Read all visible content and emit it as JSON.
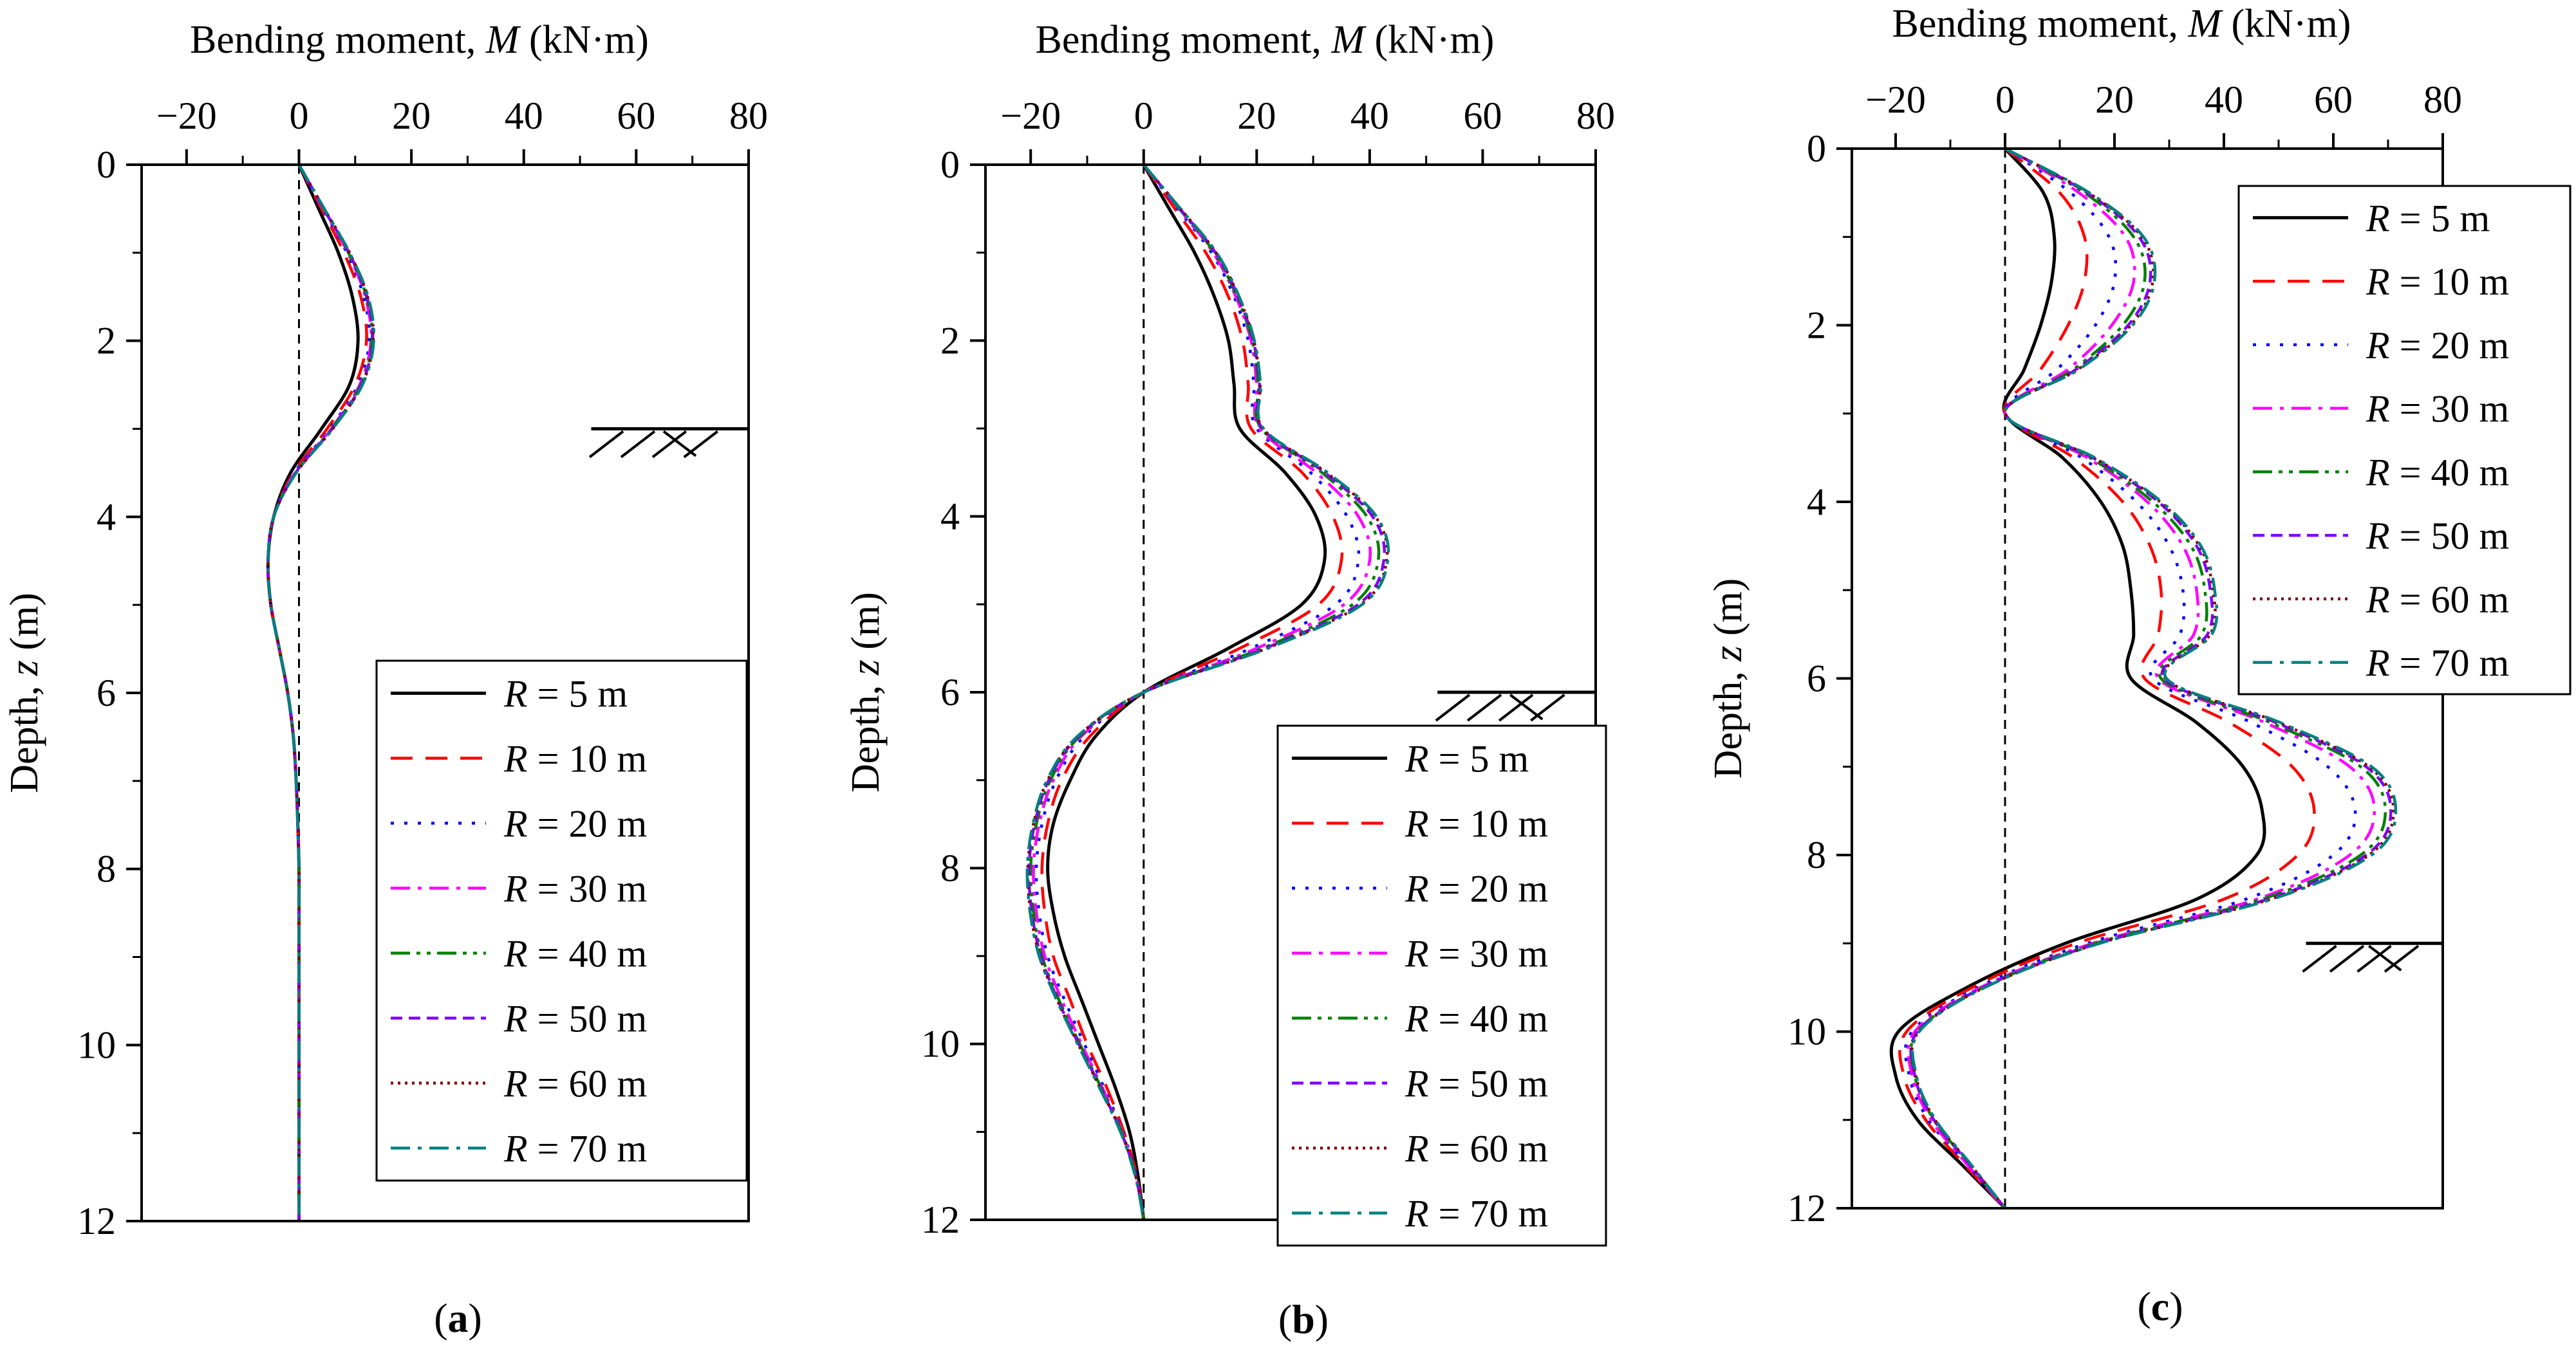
{
  "figure": {
    "series_styles": [
      {
        "name": "R = 5 m",
        "color": "#000000",
        "dash": ""
      },
      {
        "name": "R = 10 m",
        "color": "#ff0000",
        "dash": "34,20"
      },
      {
        "name": "R = 20 m",
        "color": "#0000ff",
        "dash": "5,16"
      },
      {
        "name": "R = 30 m",
        "color": "#ff00ff",
        "dash": "30,12,6,12"
      },
      {
        "name": "R = 40 m",
        "color": "#008000",
        "dash": "30,10,6,10,6,10"
      },
      {
        "name": "R = 50 m",
        "color": "#8000ff",
        "dash": "18,10"
      },
      {
        "name": "R = 60 m",
        "color": "#800000",
        "dash": "4,7"
      },
      {
        "name": "R = 70 m",
        "color": "#008080",
        "dash": "30,12,6,12"
      }
    ]
  },
  "chart_data": [
    {
      "type": "line",
      "panel": "a",
      "label": "(a)",
      "xlabel_prefix": "Bending moment, ",
      "xlabel_var": "M",
      "xlabel_unit": " (kN·m)",
      "ylabel_prefix": "Depth, ",
      "ylabel_var": "z",
      "ylabel_unit": "  (m)",
      "xlim": [
        -28,
        80
      ],
      "ylim": [
        12,
        0
      ],
      "xticks": [
        -20,
        0,
        20,
        40,
        60,
        80
      ],
      "yticks": [
        0,
        2,
        4,
        6,
        8,
        10,
        12
      ],
      "xtick_labels": [
        "−20",
        "0",
        "20",
        "40",
        "60",
        "80"
      ],
      "ytick_labels": [
        "0",
        "2",
        "4",
        "6",
        "8",
        "10",
        "12"
      ],
      "ground_level": {
        "depth": 3,
        "x_range": [
          52,
          80
        ]
      },
      "zero_line": true,
      "legend": {
        "position": "lower-right",
        "labels": [
          "R = 5 m",
          "R = 10 m",
          "R = 20 m",
          "R = 30 m",
          "R = 40 m",
          "R = 50 m",
          "R = 60 m",
          "R = 70 m"
        ]
      },
      "y": [
        0,
        0.5,
        1,
        1.5,
        2,
        2.5,
        3,
        3.5,
        4,
        4.5,
        5,
        5.5,
        6,
        6.5,
        7,
        7.5,
        8,
        8.5,
        9,
        9.5,
        10,
        10.5,
        11,
        11.5,
        12
      ],
      "series": [
        {
          "name": "R = 5 m",
          "x": [
            0,
            3.5,
            7,
            9.5,
            10.5,
            9,
            4,
            -1.5,
            -4.5,
            -5.5,
            -5,
            -3.5,
            -2,
            -1,
            -0.5,
            -0.2,
            0,
            0,
            0,
            0,
            0,
            0,
            0,
            0,
            0
          ]
        },
        {
          "name": "R = 10 m",
          "x": [
            0,
            4,
            8,
            11,
            12,
            10,
            5,
            -1,
            -4.5,
            -5.5,
            -5,
            -3.5,
            -2,
            -1,
            -0.5,
            -0.2,
            0,
            0,
            0,
            0,
            0,
            0,
            0,
            0,
            0
          ]
        },
        {
          "name": "R = 20 m",
          "x": [
            0,
            4.2,
            8.5,
            11.5,
            12.5,
            10.5,
            5.5,
            -0.8,
            -4.5,
            -5.5,
            -5,
            -3.5,
            -2,
            -1,
            -0.5,
            -0.2,
            0,
            0,
            0,
            0,
            0,
            0,
            0,
            0,
            0
          ]
        },
        {
          "name": "R = 30 m",
          "x": [
            0,
            4.3,
            8.7,
            11.8,
            12.8,
            10.8,
            5.7,
            -0.7,
            -4.5,
            -5.5,
            -5,
            -3.5,
            -2,
            -1,
            -0.5,
            -0.2,
            0,
            0,
            0,
            0,
            0,
            0,
            0,
            0,
            0
          ]
        },
        {
          "name": "R = 40 m",
          "x": [
            0,
            4.4,
            8.8,
            12,
            13,
            11,
            5.8,
            -0.6,
            -4.5,
            -5.5,
            -5,
            -3.5,
            -2,
            -1,
            -0.5,
            -0.2,
            0,
            0,
            0,
            0,
            0,
            0,
            0,
            0,
            0
          ]
        },
        {
          "name": "R = 50 m",
          "x": [
            0,
            4.4,
            8.9,
            12.1,
            13.1,
            11.1,
            5.9,
            -0.6,
            -4.5,
            -5.5,
            -5,
            -3.5,
            -2,
            -1,
            -0.5,
            -0.2,
            0,
            0,
            0,
            0,
            0,
            0,
            0,
            0,
            0
          ]
        },
        {
          "name": "R = 60 m",
          "x": [
            0,
            4.5,
            9,
            12.2,
            13.2,
            11.2,
            6,
            -0.5,
            -4.5,
            -5.5,
            -5,
            -3.5,
            -2,
            -1,
            -0.5,
            -0.2,
            0,
            0,
            0,
            0,
            0,
            0,
            0,
            0,
            0
          ]
        },
        {
          "name": "R = 70 m",
          "x": [
            0,
            4.5,
            9,
            12.3,
            13.3,
            11.3,
            6,
            -0.5,
            -4.5,
            -5.5,
            -5,
            -3.5,
            -2,
            -1,
            -0.5,
            -0.2,
            0,
            0,
            0,
            0,
            0,
            0,
            0,
            0,
            0
          ]
        }
      ]
    },
    {
      "type": "line",
      "panel": "b",
      "label": "(b)",
      "xlabel_prefix": "Bending moment, ",
      "xlabel_var": "M",
      "xlabel_unit": " (kN·m)",
      "ylabel_prefix": "Depth, ",
      "ylabel_var": "z",
      "ylabel_unit": "  (m)",
      "xlim": [
        -28,
        80
      ],
      "ylim": [
        12,
        0
      ],
      "xticks": [
        -20,
        0,
        20,
        40,
        60,
        80
      ],
      "yticks": [
        0,
        2,
        4,
        6,
        8,
        10,
        12
      ],
      "xtick_labels": [
        "−20",
        "0",
        "20",
        "40",
        "60",
        "80"
      ],
      "ytick_labels": [
        "0",
        "2",
        "4",
        "6",
        "8",
        "10",
        "12"
      ],
      "ground_level": {
        "depth": 6,
        "x_range": [
          52,
          80
        ]
      },
      "zero_line": true,
      "legend": {
        "position": "lower-right",
        "labels": [
          "R = 5 m",
          "R = 10 m",
          "R = 20 m",
          "R = 30 m",
          "R = 40 m",
          "R = 50 m",
          "R = 60 m",
          "R = 70 m"
        ]
      },
      "y": [
        0,
        0.5,
        1,
        1.5,
        2,
        2.5,
        3,
        3.5,
        4,
        4.5,
        5,
        5.5,
        6,
        6.5,
        7,
        7.5,
        8,
        8.5,
        9,
        9.5,
        10,
        10.5,
        11,
        11.5,
        12
      ],
      "series": [
        {
          "name": "R = 5 m",
          "x": [
            0,
            4.5,
            9,
            12.5,
            15,
            16,
            17,
            25,
            30.5,
            32,
            28,
            15,
            0,
            -8.5,
            -13,
            -16,
            -17,
            -16,
            -14,
            -11,
            -8,
            -5,
            -2.5,
            -1,
            0
          ]
        },
        {
          "name": "R = 10 m",
          "x": [
            0,
            5.5,
            11,
            15,
            17.5,
            18.5,
            19,
            28,
            33.5,
            35,
            31,
            17,
            0,
            -9.5,
            -14.5,
            -17,
            -18,
            -17.5,
            -16,
            -13,
            -10,
            -6.5,
            -3.5,
            -1.2,
            0
          ]
        },
        {
          "name": "R = 20 m",
          "x": [
            0,
            6,
            12,
            16,
            18.5,
            19.5,
            20,
            29.5,
            36,
            38,
            34,
            19,
            0,
            -10.5,
            -15.5,
            -18,
            -19,
            -18.5,
            -17,
            -14,
            -10.5,
            -7,
            -3.7,
            -1.3,
            0
          ]
        },
        {
          "name": "R = 30 m",
          "x": [
            0,
            6.2,
            12.3,
            16.3,
            19,
            20,
            20.5,
            30.5,
            38,
            40,
            35.5,
            20,
            0,
            -11,
            -16,
            -18.5,
            -19.5,
            -19,
            -17.5,
            -14.5,
            -11,
            -7.3,
            -3.8,
            -1.4,
            0
          ]
        },
        {
          "name": "R = 40 m",
          "x": [
            0,
            6.3,
            12.5,
            16.5,
            19.2,
            20.3,
            20.8,
            31.5,
            39.5,
            41.5,
            37,
            21,
            0,
            -11.3,
            -16.5,
            -19,
            -20,
            -19.5,
            -18,
            -15,
            -11.3,
            -7.5,
            -3.9,
            -1.4,
            0
          ]
        },
        {
          "name": "R = 50 m",
          "x": [
            0,
            6.4,
            12.7,
            16.7,
            19.4,
            20.5,
            21,
            32,
            40.5,
            42.5,
            38,
            21.5,
            0,
            -11.5,
            -16.8,
            -19.3,
            -20.3,
            -19.8,
            -18.2,
            -15.2,
            -11.5,
            -7.6,
            -4,
            -1.4,
            0
          ]
        },
        {
          "name": "R = 60 m",
          "x": [
            0,
            6.5,
            12.8,
            16.8,
            19.5,
            20.6,
            21.1,
            32.3,
            41,
            43,
            38.5,
            21.8,
            0,
            -11.6,
            -17,
            -19.5,
            -20.5,
            -20,
            -18.4,
            -15.3,
            -11.6,
            -7.7,
            -4,
            -1.4,
            0
          ]
        },
        {
          "name": "R = 70 m",
          "x": [
            0,
            6.5,
            12.9,
            16.9,
            19.6,
            20.7,
            21.2,
            32.5,
            41.2,
            43.2,
            38.7,
            22,
            0,
            -11.7,
            -17.1,
            -19.6,
            -20.6,
            -20.1,
            -18.5,
            -15.4,
            -11.7,
            -7.8,
            -4.1,
            -1.5,
            0
          ]
        }
      ]
    },
    {
      "type": "line",
      "panel": "c",
      "label": "(c)",
      "xlabel_prefix": "Bending moment, ",
      "xlabel_var": "M",
      "xlabel_unit": " (kN·m)",
      "ylabel_prefix": "Depth, ",
      "ylabel_var": "z",
      "ylabel_unit": "  (m)",
      "xlim": [
        -28,
        80
      ],
      "ylim": [
        12,
        0
      ],
      "xticks": [
        -20,
        0,
        20,
        40,
        60,
        80
      ],
      "yticks": [
        0,
        2,
        4,
        6,
        8,
        10,
        12
      ],
      "xtick_labels": [
        "−20",
        "0",
        "20",
        "40",
        "60",
        "80"
      ],
      "ytick_labels": [
        "0",
        "2",
        "4",
        "6",
        "8",
        "10",
        "12"
      ],
      "ground_level": {
        "depth": 9,
        "x_range": [
          55,
          80
        ]
      },
      "zero_line": true,
      "legend": {
        "position": "upper-right",
        "labels": [
          "R = 5 m",
          "R = 10 m",
          "R = 20 m",
          "R = 30 m",
          "R = 40 m",
          "R = 50 m",
          "R = 60 m",
          "R = 70 m"
        ]
      },
      "y": [
        0,
        0.5,
        1,
        1.5,
        2,
        2.5,
        3,
        3.5,
        4,
        4.5,
        5,
        5.5,
        6,
        6.5,
        7,
        7.5,
        8,
        8.5,
        9,
        9.5,
        10,
        10.5,
        11,
        11.5,
        12
      ],
      "series": [
        {
          "name": "R = 5 m",
          "x": [
            0,
            7,
            9,
            8.5,
            6.5,
            3.5,
            0,
            10.5,
            17.5,
            21.5,
            23,
            23.5,
            23,
            35,
            43.5,
            47,
            46,
            35,
            11,
            -7,
            -19.5,
            -20,
            -16,
            -8,
            0
          ]
        },
        {
          "name": "R = 10 m",
          "x": [
            0,
            10,
            14.5,
            14.5,
            11.5,
            6.5,
            0,
            12.5,
            21.5,
            26.5,
            28.5,
            28,
            25.5,
            41,
            52.5,
            56.5,
            53.5,
            40,
            13,
            -6,
            -18,
            -18.5,
            -14.5,
            -7.5,
            0
          ]
        },
        {
          "name": "R = 20 m",
          "x": [
            0,
            12,
            19,
            20,
            16.5,
            9.5,
            0,
            14,
            24,
            30,
            32.5,
            32,
            27,
            45,
            59,
            64,
            60,
            44,
            15,
            -5,
            -17,
            -17.5,
            -14,
            -7,
            0
          ]
        },
        {
          "name": "R = 30 m",
          "x": [
            0,
            13.5,
            22,
            23.5,
            19.5,
            11.5,
            0,
            15,
            26,
            32.5,
            35,
            34.5,
            28,
            47.5,
            63,
            67.5,
            63,
            46,
            16,
            -4.5,
            -16.5,
            -17,
            -13.5,
            -7,
            0
          ]
        },
        {
          "name": "R = 40 m",
          "x": [
            0,
            14.5,
            23.5,
            25.5,
            21.5,
            12.5,
            0,
            15.5,
            27,
            34,
            36.5,
            36,
            28.5,
            48.5,
            65,
            69.5,
            65,
            47,
            16.5,
            -4,
            -16,
            -16.5,
            -13,
            -6.5,
            0
          ]
        },
        {
          "name": "R = 50 m",
          "x": [
            0,
            15,
            24.5,
            26.5,
            22.5,
            13,
            0,
            16,
            28,
            35,
            37.5,
            37,
            29,
            49.5,
            66,
            70.5,
            66,
            48,
            17,
            -4,
            -16,
            -16.5,
            -13,
            -6.5,
            0
          ]
        },
        {
          "name": "R = 60 m",
          "x": [
            0,
            15.2,
            25,
            27,
            23,
            13.3,
            0,
            16.2,
            28.3,
            35.5,
            38,
            37.5,
            29.3,
            50,
            66.5,
            71,
            66.5,
            48.5,
            17.2,
            -3.8,
            -15.8,
            -16.3,
            -12.8,
            -6.4,
            0
          ]
        },
        {
          "name": "R = 70 m",
          "x": [
            0,
            15.4,
            25.3,
            27.3,
            23.3,
            13.5,
            0,
            16.4,
            28.6,
            35.8,
            38.3,
            37.8,
            29.5,
            50.3,
            67,
            71.4,
            67,
            48.8,
            17.3,
            -3.7,
            -15.7,
            -16.2,
            -12.7,
            -6.3,
            0
          ]
        }
      ]
    }
  ]
}
